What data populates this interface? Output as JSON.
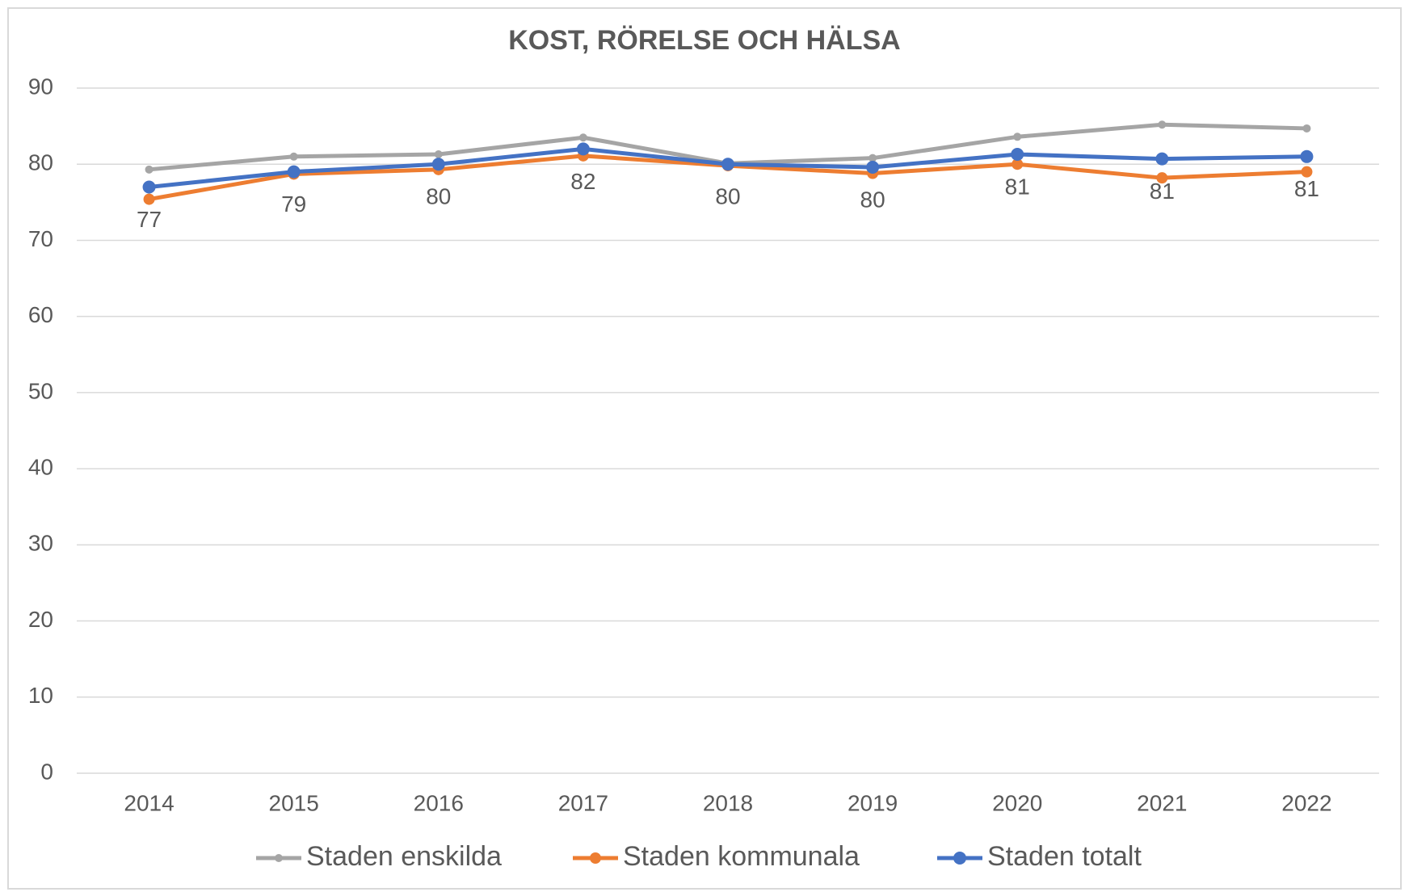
{
  "chart_data": {
    "type": "line",
    "title": "KOST, RÖRELSE OCH HÄLSA",
    "categories": [
      "2014",
      "2015",
      "2016",
      "2017",
      "2018",
      "2019",
      "2020",
      "2021",
      "2022"
    ],
    "series": [
      {
        "name": "Staden enskilda",
        "color": "#a5a5a5",
        "values": [
          79.3,
          81,
          81.3,
          83.5,
          80.1,
          80.8,
          83.6,
          85.2,
          84.7
        ]
      },
      {
        "name": "Staden kommunala",
        "color": "#ed7d31",
        "values": [
          75.4,
          78.7,
          79.3,
          81.1,
          79.8,
          78.8,
          80,
          78.2,
          79
        ]
      },
      {
        "name": "Staden totalt",
        "color": "#4472c4",
        "values": [
          77,
          79,
          80,
          82,
          80,
          79.6,
          81.3,
          80.7,
          81
        ],
        "value_labels": [
          "77",
          "79",
          "80",
          "82",
          "80",
          "80",
          "81",
          "81",
          "81"
        ]
      }
    ],
    "ylim": [
      0,
      90
    ],
    "yticks": [
      0,
      10,
      20,
      30,
      40,
      50,
      60,
      70,
      80,
      90
    ],
    "grid": true,
    "legend": "bottom"
  }
}
